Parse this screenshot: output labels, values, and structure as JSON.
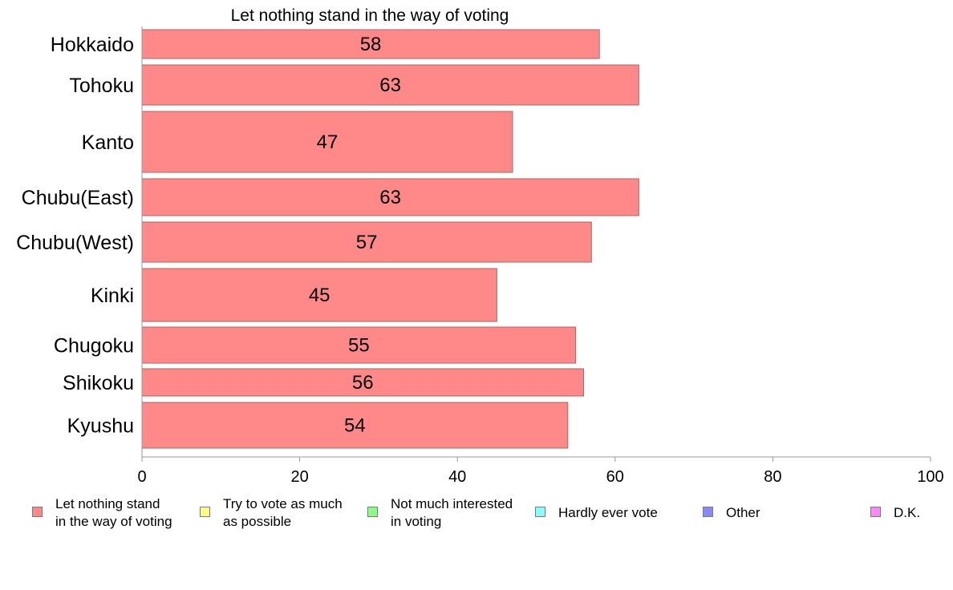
{
  "chart_data": {
    "type": "bar",
    "orientation": "horizontal",
    "title": "Let nothing stand in the way of voting",
    "categories": [
      "Hokkaido",
      "Tohoku",
      "Kanto",
      "Chubu(East)",
      "Chubu(West)",
      "Kinki",
      "Chugoku",
      "Shikoku",
      "Kyushu"
    ],
    "series": [
      {
        "name": "Let nothing stand in the way of voting",
        "color": "#ff8888",
        "values": [
          58,
          63,
          47,
          63,
          57,
          45,
          55,
          56,
          54
        ],
        "labels": [
          "58",
          "63",
          "47",
          "63",
          "57",
          "45",
          "55",
          "56",
          "54"
        ]
      }
    ],
    "xlim": [
      0,
      100
    ],
    "xticks": [
      0,
      20,
      40,
      60,
      80,
      100
    ],
    "xtick_labels": [
      "0",
      "20",
      "40",
      "60",
      "80",
      "100"
    ],
    "grid": false,
    "legend_position": "bottom",
    "legend": [
      {
        "label": "Let nothing stand\nin the way of voting",
        "color": "#ff8888"
      },
      {
        "label": "Try to vote as much\nas possible",
        "color": "#ffff88"
      },
      {
        "label": "Not much interested\nin voting",
        "color": "#88ff88"
      },
      {
        "label": "Hardly ever vote",
        "color": "#88ffff"
      },
      {
        "label": "Other",
        "color": "#8888ff"
      },
      {
        "label": "D.K.",
        "color": "#ff88ff"
      }
    ]
  }
}
